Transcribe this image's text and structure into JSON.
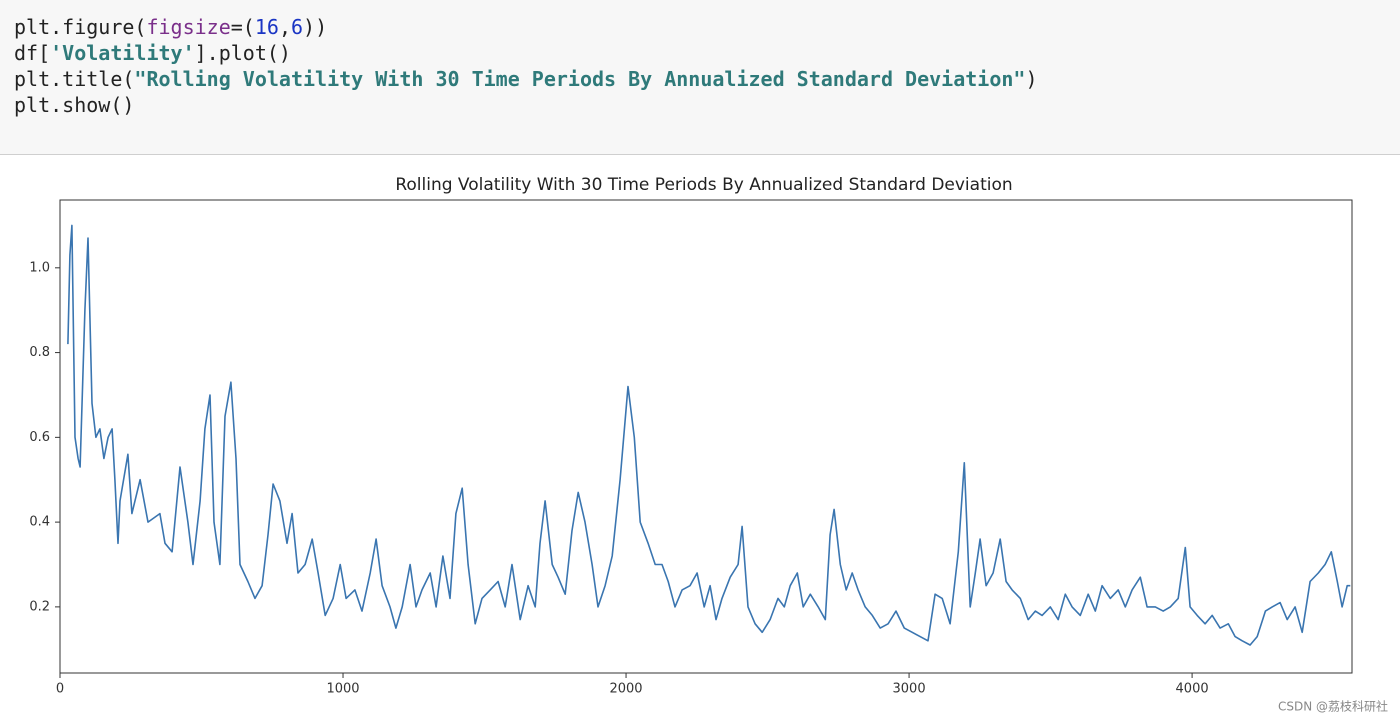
{
  "code": {
    "lines": [
      [
        "plt.figure(",
        "figsize",
        "=(",
        "16",
        ",",
        "6",
        "))"
      ],
      [
        "df[",
        "'Volatility'",
        "].plot()"
      ],
      [
        "plt.title(",
        "\"Rolling Volatility With 30 Time Periods By Annualized Standard Deviation\"",
        ")"
      ],
      [
        "plt.show()"
      ]
    ]
  },
  "chart_data": {
    "type": "line",
    "title": "Rolling Volatility With 30 Time Periods By Annualized Standard Deviation",
    "x": [
      28,
      35,
      42,
      53,
      64,
      71,
      88,
      99,
      113,
      127,
      141,
      155,
      170,
      184,
      194,
      205,
      212,
      240,
      254,
      283,
      311,
      353,
      371,
      396,
      424,
      452,
      470,
      495,
      512,
      530,
      544,
      565,
      583,
      604,
      622,
      636,
      664,
      689,
      714,
      735,
      753,
      777,
      802,
      820,
      841,
      866,
      891,
      912,
      937,
      965,
      990,
      1011,
      1042,
      1067,
      1096,
      1117,
      1138,
      1166,
      1187,
      1209,
      1237,
      1258,
      1279,
      1308,
      1329,
      1353,
      1378,
      1399,
      1421,
      1442,
      1467,
      1491,
      1520,
      1548,
      1573,
      1597,
      1626,
      1654,
      1679,
      1696,
      1714,
      1739,
      1760,
      1785,
      1809,
      1831,
      1855,
      1880,
      1901,
      1926,
      1951,
      1979,
      2007,
      2029,
      2050,
      2078,
      2103,
      2127,
      2149,
      2173,
      2198,
      2226,
      2251,
      2276,
      2297,
      2318,
      2339,
      2368,
      2396,
      2410,
      2431,
      2456,
      2481,
      2509,
      2537,
      2559,
      2580,
      2605,
      2626,
      2651,
      2679,
      2704,
      2721,
      2735,
      2757,
      2778,
      2799,
      2820,
      2845,
      2870,
      2898,
      2926,
      2954,
      2983,
      3011,
      3039,
      3067,
      3092,
      3117,
      3145,
      3174,
      3195,
      3216,
      3234,
      3251,
      3272,
      3297,
      3322,
      3343,
      3364,
      3393,
      3421,
      3446,
      3470,
      3499,
      3527,
      3552,
      3576,
      3605,
      3633,
      3658,
      3682,
      3711,
      3739,
      3764,
      3788,
      3817,
      3841,
      3870,
      3898,
      3923,
      3951,
      3976,
      3993,
      4018,
      4046,
      4071,
      4099,
      4128,
      4152,
      4177,
      4205,
      4230,
      4259,
      4283,
      4311,
      4336,
      4364,
      4389,
      4417,
      4446,
      4470,
      4492,
      4513,
      4530,
      4548,
      4559
    ],
    "series": [
      {
        "name": "Volatility",
        "color": "#3a75b0",
        "values": [
          0.82,
          1.03,
          1.1,
          0.6,
          0.55,
          0.53,
          0.9,
          1.07,
          0.68,
          0.6,
          0.62,
          0.55,
          0.6,
          0.62,
          0.5,
          0.35,
          0.45,
          0.56,
          0.42,
          0.5,
          0.4,
          0.42,
          0.35,
          0.33,
          0.53,
          0.4,
          0.3,
          0.45,
          0.62,
          0.7,
          0.4,
          0.3,
          0.65,
          0.73,
          0.55,
          0.3,
          0.26,
          0.22,
          0.25,
          0.37,
          0.49,
          0.45,
          0.35,
          0.42,
          0.28,
          0.3,
          0.36,
          0.28,
          0.18,
          0.22,
          0.3,
          0.22,
          0.24,
          0.19,
          0.28,
          0.36,
          0.25,
          0.2,
          0.15,
          0.2,
          0.3,
          0.2,
          0.24,
          0.28,
          0.2,
          0.32,
          0.22,
          0.42,
          0.48,
          0.3,
          0.16,
          0.22,
          0.24,
          0.26,
          0.2,
          0.3,
          0.17,
          0.25,
          0.2,
          0.35,
          0.45,
          0.3,
          0.27,
          0.23,
          0.38,
          0.47,
          0.4,
          0.3,
          0.2,
          0.25,
          0.32,
          0.5,
          0.72,
          0.6,
          0.4,
          0.35,
          0.3,
          0.3,
          0.26,
          0.2,
          0.24,
          0.25,
          0.28,
          0.2,
          0.25,
          0.17,
          0.22,
          0.27,
          0.3,
          0.39,
          0.2,
          0.16,
          0.14,
          0.17,
          0.22,
          0.2,
          0.25,
          0.28,
          0.2,
          0.23,
          0.2,
          0.17,
          0.37,
          0.43,
          0.3,
          0.24,
          0.28,
          0.24,
          0.2,
          0.18,
          0.15,
          0.16,
          0.19,
          0.15,
          0.14,
          0.13,
          0.12,
          0.23,
          0.22,
          0.16,
          0.33,
          0.54,
          0.2,
          0.28,
          0.36,
          0.25,
          0.28,
          0.36,
          0.26,
          0.24,
          0.22,
          0.17,
          0.19,
          0.18,
          0.2,
          0.17,
          0.23,
          0.2,
          0.18,
          0.23,
          0.19,
          0.25,
          0.22,
          0.24,
          0.2,
          0.24,
          0.27,
          0.2,
          0.2,
          0.19,
          0.2,
          0.22,
          0.34,
          0.2,
          0.18,
          0.16,
          0.18,
          0.15,
          0.16,
          0.13,
          0.12,
          0.11,
          0.13,
          0.19,
          0.2,
          0.21,
          0.17,
          0.2,
          0.14,
          0.26,
          0.28,
          0.3,
          0.33,
          0.26,
          0.2,
          0.25,
          0.25
        ]
      }
    ],
    "xlim": [
      0,
      4565
    ],
    "xticks": [
      0,
      1000,
      2000,
      3000,
      4000
    ],
    "ylim": [
      0.044,
      1.16
    ],
    "yticks": [
      0.2,
      0.4,
      0.6,
      0.8,
      {
        "value": 1,
        "label": "1.0"
      }
    ],
    "grid": false
  },
  "watermark": "CSDN @荔枝科研社"
}
